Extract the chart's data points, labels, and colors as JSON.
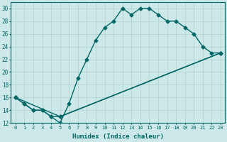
{
  "xlabel": "Humidex (Indice chaleur)",
  "bg_color": "#cce8e8",
  "grid_color": "#b0d0d0",
  "line_color": "#006666",
  "xlim": [
    -0.5,
    23.5
  ],
  "ylim": [
    12,
    31
  ],
  "xticks": [
    0,
    1,
    2,
    3,
    4,
    5,
    6,
    7,
    8,
    9,
    10,
    11,
    12,
    13,
    14,
    15,
    16,
    17,
    18,
    19,
    20,
    21,
    22,
    23
  ],
  "yticks": [
    12,
    14,
    16,
    18,
    20,
    22,
    24,
    26,
    28,
    30
  ],
  "line1_x": [
    0,
    1,
    2,
    3,
    4,
    5,
    6,
    7,
    8,
    9,
    10,
    11,
    12,
    13,
    14,
    15,
    16,
    17,
    18,
    19,
    20,
    21,
    22,
    23
  ],
  "line1_y": [
    16,
    15,
    14,
    14,
    13,
    12,
    15,
    19,
    22,
    25,
    27,
    28,
    30,
    29,
    30,
    30,
    29,
    28,
    28,
    27,
    26,
    24,
    23,
    23
  ],
  "line2_x": [
    0,
    1,
    2,
    3,
    4,
    5,
    23
  ],
  "line2_y": [
    16,
    15,
    14,
    14,
    13,
    13,
    23
  ],
  "line3_x": [
    0,
    5,
    23
  ],
  "line3_y": [
    16,
    13,
    23
  ],
  "marker": "D",
  "markersize": 2.5,
  "linewidth": 1.0
}
